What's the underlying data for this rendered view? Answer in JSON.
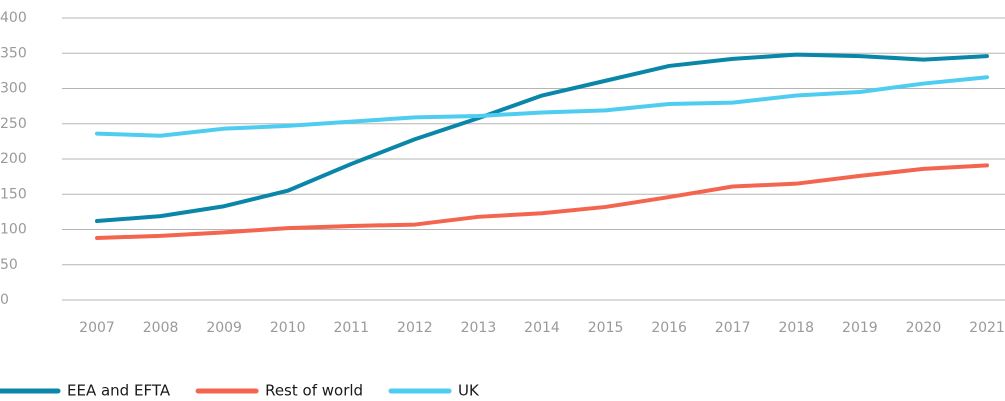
{
  "chart_data": {
    "type": "line",
    "categories": [
      "2007",
      "2008",
      "2009",
      "2010",
      "2011",
      "2012",
      "2013",
      "2014",
      "2015",
      "2016",
      "2017",
      "2018",
      "2019",
      "2020",
      "2021"
    ],
    "series": [
      {
        "name": "EEA and EFTA",
        "color": "#0a86a8",
        "values": [
          112,
          119,
          133,
          155,
          193,
          228,
          258,
          290,
          311,
          332,
          342,
          348,
          346,
          341,
          346
        ]
      },
      {
        "name": "Rest of world",
        "color": "#f4654f",
        "values": [
          88,
          91,
          96,
          102,
          105,
          107,
          118,
          123,
          132,
          146,
          161,
          165,
          176,
          186,
          191
        ]
      },
      {
        "name": "UK",
        "color": "#4fcdf0",
        "values": [
          236,
          233,
          243,
          247,
          253,
          259,
          261,
          266,
          269,
          278,
          280,
          290,
          295,
          307,
          316
        ]
      }
    ],
    "ylim": [
      0,
      400
    ],
    "yticks": [
      0,
      50,
      100,
      150,
      200,
      250,
      300,
      350,
      400
    ],
    "grid": true,
    "legend": "bottom-left"
  }
}
